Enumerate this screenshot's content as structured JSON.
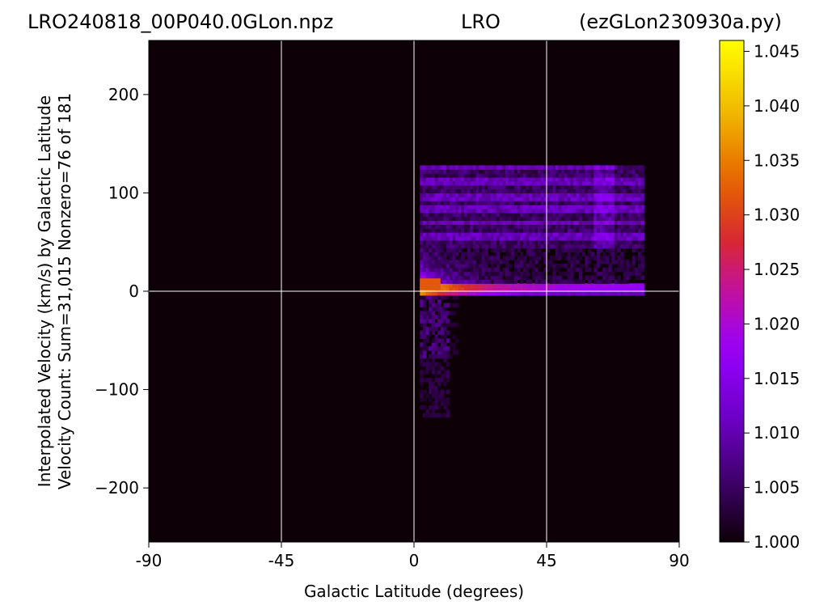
{
  "chart_data": {
    "type": "heatmap",
    "title_left": "LRO240818_00P040.0GLon.npz",
    "title_center": "LRO",
    "title_right": "(ezGLon230930a.py)",
    "xlabel": "Galactic Latitude (degrees)",
    "ylabel_line1": "Interpolated Velocity (km/s) by Galactic Latitude",
    "ylabel_line2": "Velocity Count: Sum=31,015 Nonzero=76 of 181",
    "xlim": [
      -90,
      90
    ],
    "ylim": [
      -255,
      255
    ],
    "x_ticks": [
      -90,
      -45,
      0,
      45,
      90
    ],
    "x_tick_labels": [
      "-90",
      "-45",
      "0",
      "45",
      "90"
    ],
    "y_ticks": [
      200,
      100,
      0,
      -100,
      -200
    ],
    "y_tick_labels": [
      "200",
      "100",
      "0",
      "−100",
      "−200"
    ],
    "grid": true,
    "colormap": "gnuplot",
    "colorbar": {
      "range": [
        1.0,
        1.046
      ],
      "ticks": [
        1.045,
        1.04,
        1.035,
        1.03,
        1.025,
        1.02,
        1.015,
        1.01,
        1.005,
        1.0
      ],
      "tick_labels": [
        "1.045",
        "1.040",
        "1.035",
        "1.030",
        "1.025",
        "1.020",
        "1.015",
        "1.010",
        "1.005",
        "1.000"
      ]
    },
    "background_value": 1.0,
    "data_region": {
      "x_range": [
        2,
        78
      ],
      "v_range": [
        -128,
        128
      ],
      "peak": {
        "x": 3,
        "v": 5,
        "value": 1.032
      },
      "horizontal_bands_v": [
        125,
        110,
        95,
        82,
        68,
        55,
        40,
        28
      ]
    },
    "colors": {
      "background": "#0d0007",
      "grid": "#ffffff"
    }
  }
}
